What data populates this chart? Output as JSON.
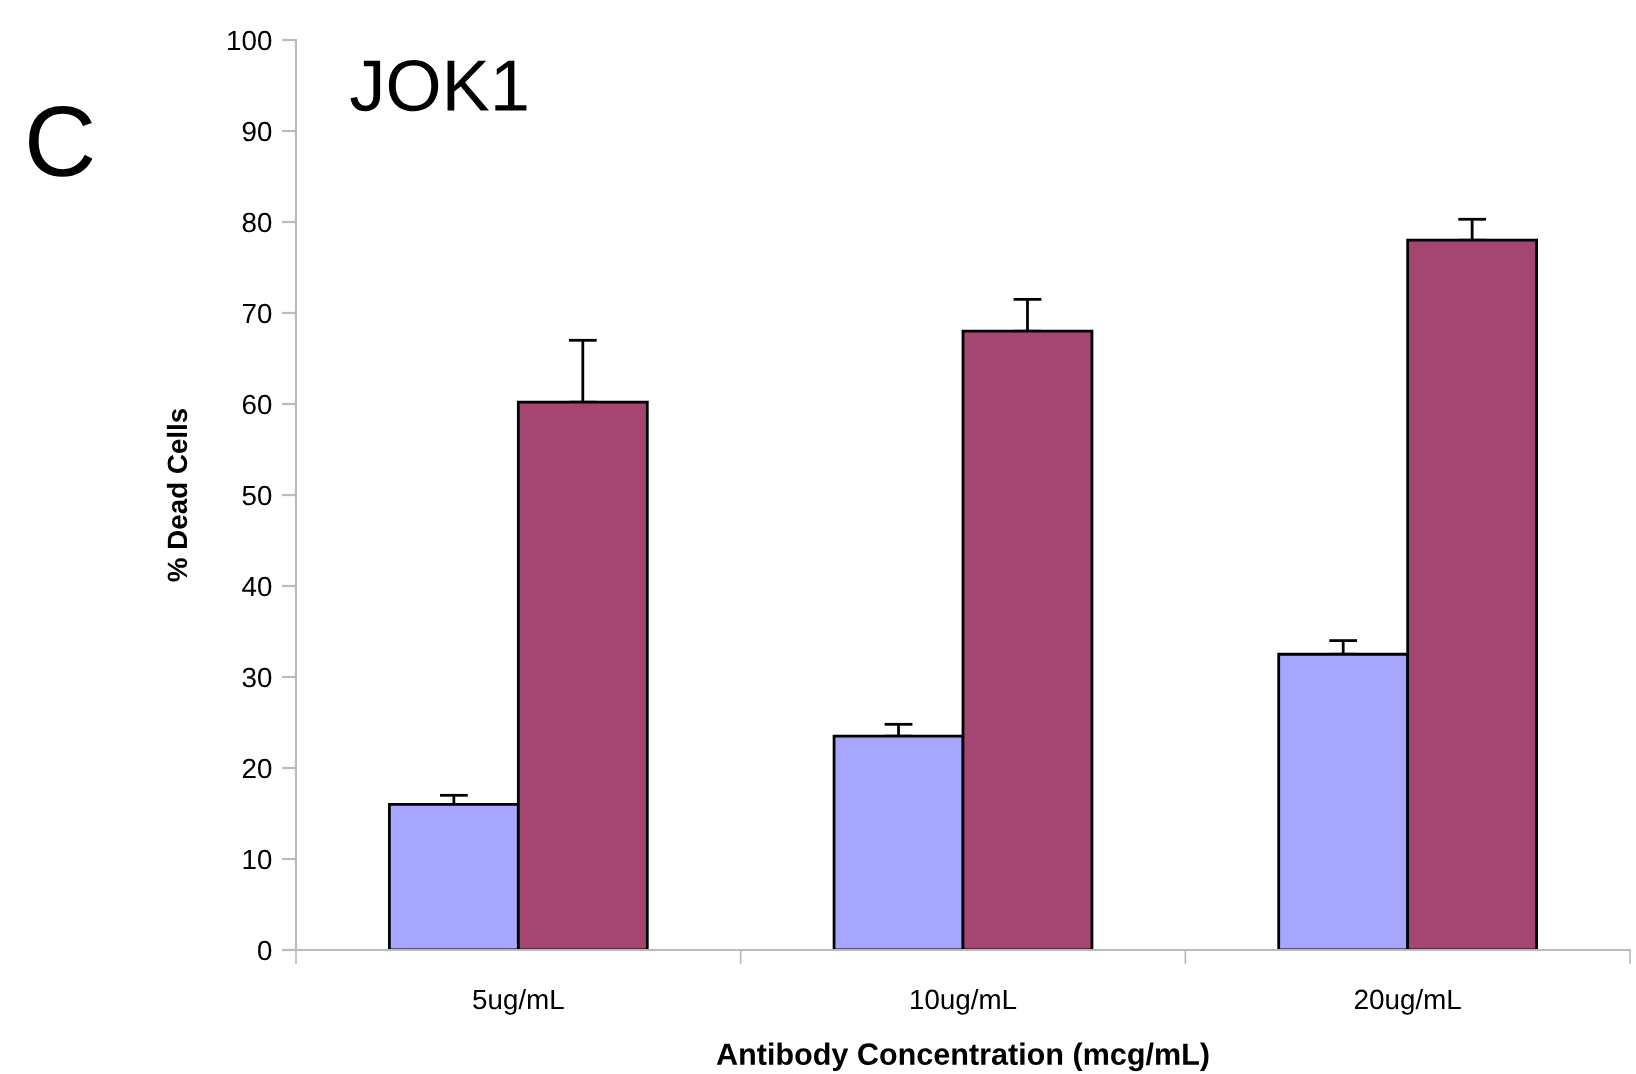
{
  "chart_data": {
    "type": "bar",
    "title": "JOK1",
    "xlabel": "Antibody Concentration (mcg/mL)",
    "ylabel": "% Dead Cells",
    "annotations": [
      "C"
    ],
    "categories": [
      "5ug/mL",
      "10ug/mL",
      "20ug/mL"
    ],
    "series": [
      {
        "color": "#a6a6ff",
        "values": [
          16,
          23.5,
          32.5
        ],
        "errors": [
          [
            16,
            17
          ],
          [
            23.5,
            24.8
          ],
          [
            32.5,
            34
          ]
        ]
      },
      {
        "color": "#a54672",
        "values": [
          60.2,
          68,
          78
        ],
        "errors": [
          [
            60.2,
            67
          ],
          [
            68,
            71.5
          ],
          [
            78,
            80.3
          ]
        ]
      }
    ],
    "ylim": [
      0,
      100
    ],
    "yticks": [
      0,
      10,
      20,
      30,
      40,
      50,
      60,
      70,
      80,
      90,
      100
    ],
    "grid": false,
    "legend": false
  }
}
